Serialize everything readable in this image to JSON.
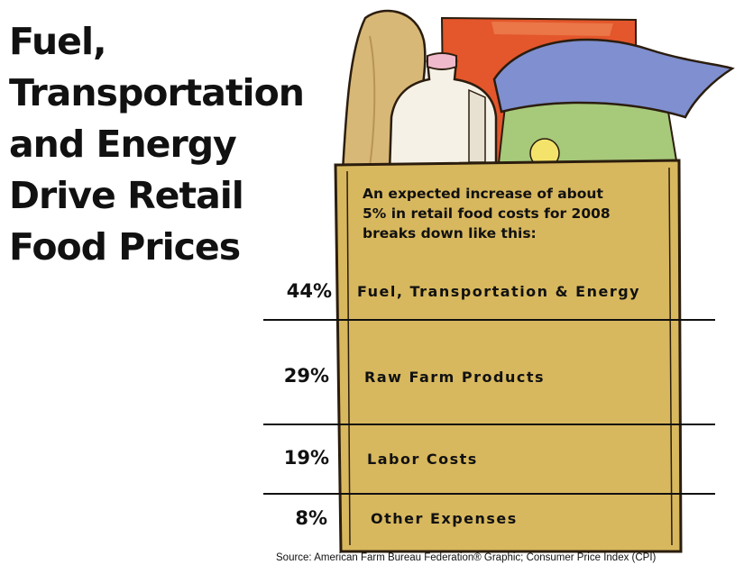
{
  "title_lines": [
    "Fuel,",
    "Transportation",
    "and Energy",
    "Drive Retail",
    "Food Prices"
  ],
  "intro_lines": [
    "An expected increase of about",
    "5% in retail food costs for 2008",
    "breaks down like this:"
  ],
  "source": "Source:  American Farm Bureau Federation® Graphic; Consumer Price Index (CPI)",
  "chart_data": {
    "type": "table",
    "title": "Fuel, Transportation and Energy Drive Retail Food Prices",
    "unit": "%",
    "categories": [
      "Fuel, Transportation & Energy",
      "Raw Farm Products",
      "Labor Costs",
      "Other Expenses"
    ],
    "values": [
      44,
      29,
      19,
      8
    ],
    "value_labels": [
      "44%",
      "29%",
      "19%",
      "8%"
    ]
  },
  "colors": {
    "bag": "#d8b85e",
    "bag_outline": "#2b1d0e",
    "bread": "#d8b877",
    "box": "#e4562b",
    "milk": "#f6f1e6",
    "milk_cap": "#f1b9cc",
    "sack": "#7f8fcf",
    "lettuce": "#a7c97a"
  }
}
